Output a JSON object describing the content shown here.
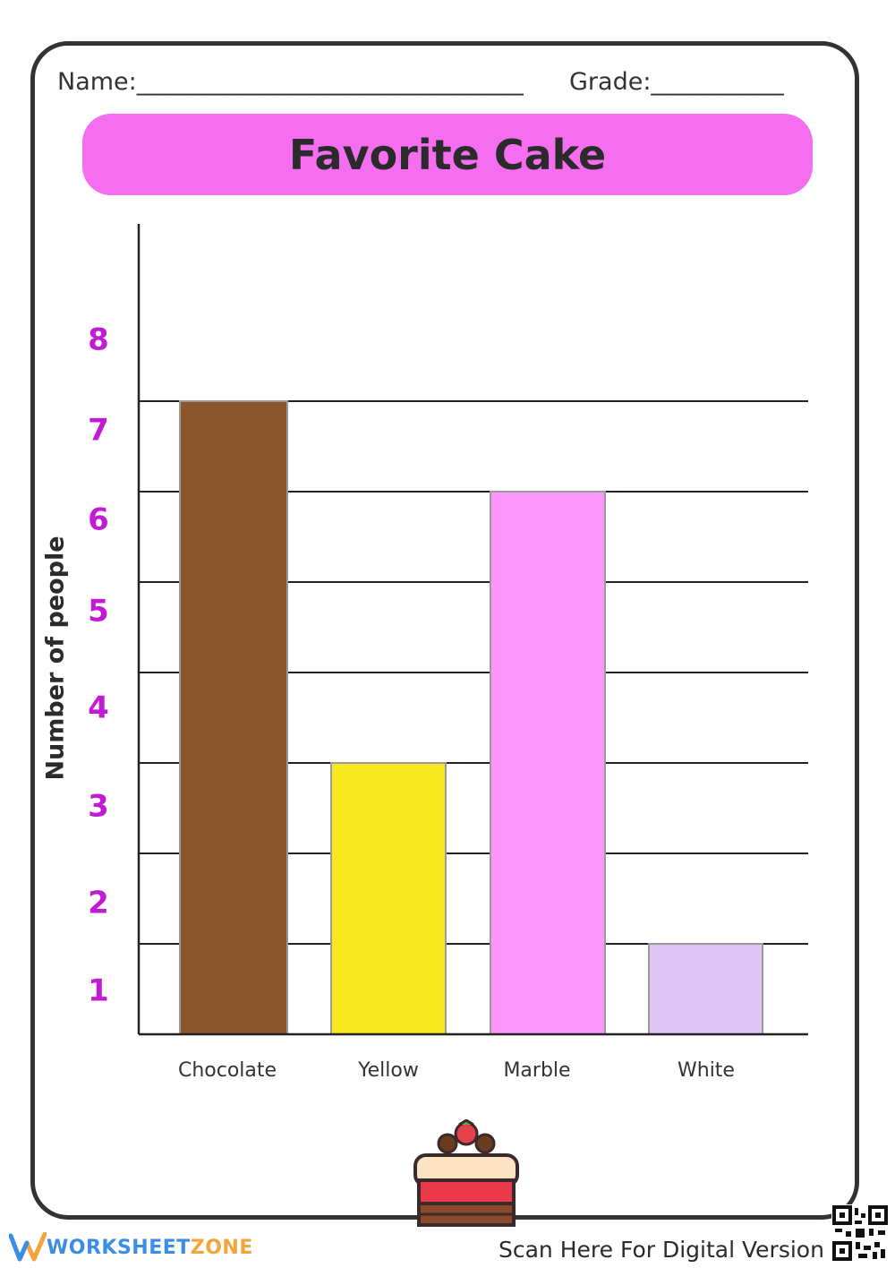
{
  "worksheet": {
    "name_label": "Name:________________________________",
    "grade_label": "Grade:___________",
    "title": "Favorite Cake",
    "footer_brand_a": "WORKSHEET",
    "footer_brand_b": "ZONE",
    "scan_text": "Scan Here For Digital Version"
  },
  "chart_data": {
    "type": "bar",
    "title": "Favorite Cake",
    "xlabel": "",
    "ylabel": "Number of people",
    "categories": [
      "Chocolate",
      "Yellow",
      "Marble",
      "White"
    ],
    "values": [
      7,
      3,
      6,
      1
    ],
    "colors": [
      "#8b552b",
      "#f8e81f",
      "#fd96fb",
      "#dfc4f6"
    ],
    "yticks": [
      "1",
      "2",
      "3",
      "4",
      "5",
      "6",
      "7",
      "8"
    ],
    "ylim": [
      0,
      8
    ],
    "tick_color": "#c21bd6",
    "grid": true
  }
}
